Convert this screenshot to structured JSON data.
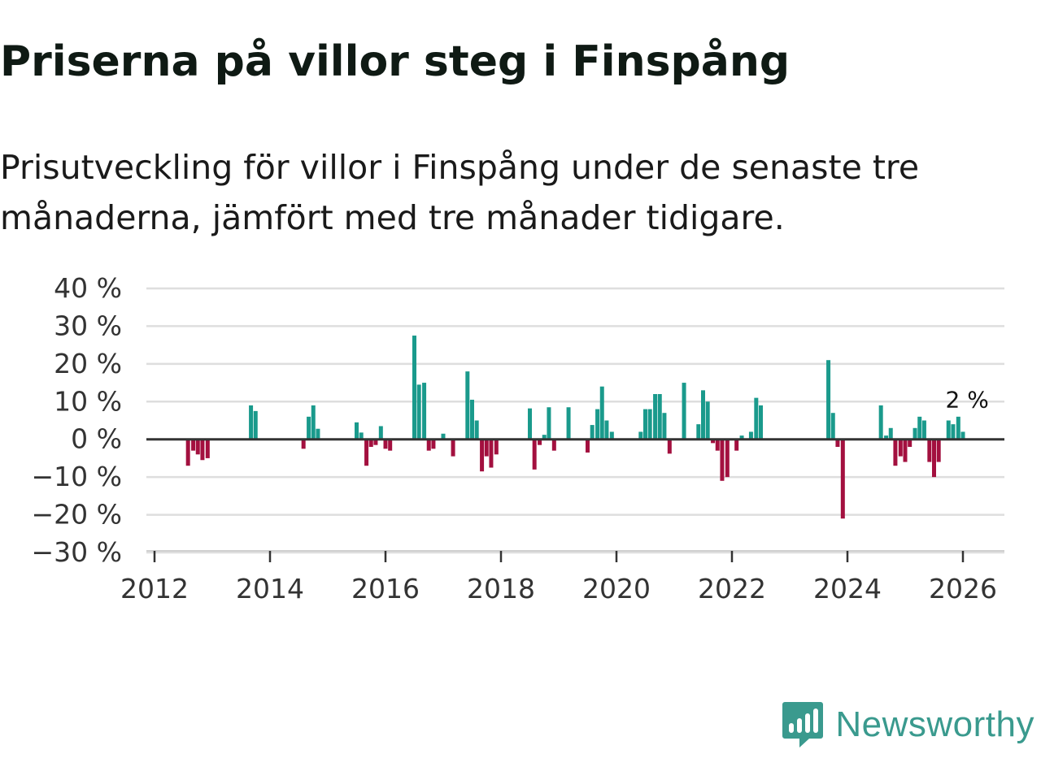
{
  "header": {
    "title": "Priserna på villor steg i Finspång",
    "subtitle": "Prisutveckling för villor i Finspång under de senaste tre månaderna, jämfört med tre månader tidigare."
  },
  "brand": {
    "name": "Newsworthy"
  },
  "colors": {
    "positive": "#1a9a8c",
    "negative": "#a3103f",
    "grid": "#dedede",
    "zero_line": "#333333",
    "brand": "#3a9a8e"
  },
  "chart_data": {
    "type": "bar",
    "title": "Priserna på villor steg i Finspång",
    "xlabel": "",
    "ylabel": "",
    "ylim": [
      -30,
      40
    ],
    "xlim": [
      2012,
      2026.7
    ],
    "y_ticks": [
      -30,
      -20,
      -10,
      0,
      10,
      20,
      30,
      40
    ],
    "y_tick_labels": [
      "−30 %",
      "−20 %",
      "−10 %",
      "0 %",
      "10 %",
      "20 %",
      "30 %",
      "40 %"
    ],
    "x_ticks": [
      2012,
      2014,
      2016,
      2018,
      2020,
      2022,
      2024,
      2026
    ],
    "x_tick_labels": [
      "2012",
      "2014",
      "2016",
      "2018",
      "2020",
      "2022",
      "2024",
      "2026"
    ],
    "grid": true,
    "annotation": {
      "text": "2 %",
      "x": 2025.96,
      "value": 2
    },
    "x": [
      2012.58,
      2012.67,
      2012.75,
      2012.83,
      2012.92,
      2013.67,
      2013.75,
      2014.58,
      2014.67,
      2014.75,
      2014.83,
      2015.5,
      2015.58,
      2015.67,
      2015.75,
      2015.83,
      2015.92,
      2016.0,
      2016.08,
      2016.5,
      2016.58,
      2016.67,
      2016.75,
      2016.83,
      2017.0,
      2017.17,
      2017.42,
      2017.5,
      2017.58,
      2017.67,
      2017.75,
      2017.83,
      2017.92,
      2018.5,
      2018.58,
      2018.67,
      2018.75,
      2018.83,
      2018.92,
      2019.17,
      2019.5,
      2019.58,
      2019.67,
      2019.75,
      2019.83,
      2019.92,
      2020.42,
      2020.5,
      2020.58,
      2020.67,
      2020.75,
      2020.83,
      2020.92,
      2021.17,
      2021.42,
      2021.5,
      2021.58,
      2021.67,
      2021.75,
      2021.83,
      2021.92,
      2022.08,
      2022.17,
      2022.33,
      2022.42,
      2022.5,
      2023.67,
      2023.75,
      2023.83,
      2023.92,
      2024.58,
      2024.67,
      2024.75,
      2024.83,
      2024.92,
      2025.0,
      2025.08,
      2025.17,
      2025.25,
      2025.33,
      2025.42,
      2025.5,
      2025.58,
      2025.75,
      2025.83,
      2025.92,
      2026.0
    ],
    "values": [
      -7,
      -3,
      -4,
      -5.5,
      -5,
      9,
      7.5,
      -2.5,
      6,
      9,
      2.8,
      4.5,
      1.8,
      -7,
      -2,
      -1.5,
      3.5,
      -2.5,
      -3,
      27.5,
      14.5,
      15,
      -3,
      -2.5,
      1.5,
      -4.5,
      18,
      10.5,
      5,
      -8.5,
      -4.5,
      -7.5,
      -4,
      8.2,
      -8,
      -1.5,
      1.2,
      8.5,
      -3,
      8.5,
      -3.5,
      3.8,
      8,
      14,
      5,
      2,
      2,
      8,
      8,
      12,
      12,
      7,
      -3.8,
      15,
      4,
      13,
      10,
      -1,
      -3,
      -11,
      -10,
      -3,
      1,
      2,
      11,
      9,
      21,
      7,
      -2,
      -21,
      9,
      1,
      3,
      -7,
      -4.5,
      -6,
      -2,
      3,
      6,
      5,
      -6,
      -10,
      -6,
      5,
      4,
      6,
      2
    ]
  }
}
